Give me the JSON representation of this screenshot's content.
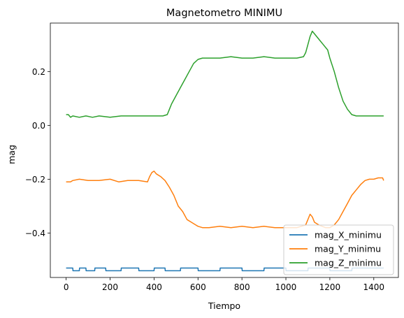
{
  "chart_data": {
    "type": "line",
    "title": "Magnetometro MINIMU",
    "xlabel": "Tiempo",
    "ylabel": "mag",
    "xlim": [
      -72,
      1512
    ],
    "ylim": [
      -0.565,
      0.38
    ],
    "xticks": [
      0,
      200,
      400,
      600,
      800,
      1000,
      1200,
      1400
    ],
    "xtick_labels": [
      "0",
      "200",
      "400",
      "600",
      "800",
      "1000",
      "1200",
      "1400"
    ],
    "yticks": [
      -0.4,
      -0.2,
      0.0,
      0.2
    ],
    "ytick_labels": [
      "−0.4",
      "−0.2",
      "0.0",
      "0.2"
    ],
    "grid": false,
    "legend_position": "lower-right",
    "series": [
      {
        "name": "mag_X_minimu",
        "color": "#1f77b4",
        "x": [
          0,
          30,
          31,
          60,
          61,
          90,
          91,
          130,
          131,
          180,
          181,
          250,
          251,
          330,
          331,
          400,
          401,
          450,
          451,
          520,
          521,
          600,
          601,
          700,
          701,
          800,
          801,
          900,
          901,
          1000,
          1001,
          1100,
          1101,
          1200,
          1201,
          1300,
          1301,
          1445
        ],
        "y": [
          -0.53,
          -0.53,
          -0.54,
          -0.54,
          -0.53,
          -0.53,
          -0.54,
          -0.54,
          -0.53,
          -0.53,
          -0.54,
          -0.54,
          -0.53,
          -0.53,
          -0.54,
          -0.54,
          -0.53,
          -0.53,
          -0.54,
          -0.54,
          -0.53,
          -0.53,
          -0.54,
          -0.54,
          -0.53,
          -0.53,
          -0.54,
          -0.54,
          -0.53,
          -0.53,
          -0.54,
          -0.54,
          -0.53,
          -0.53,
          -0.54,
          -0.54,
          -0.53,
          -0.53
        ]
      },
      {
        "name": "mag_Y_minimu",
        "color": "#ff7f0e",
        "x": [
          0,
          20,
          30,
          60,
          100,
          150,
          200,
          240,
          280,
          330,
          370,
          380,
          390,
          400,
          410,
          430,
          450,
          470,
          490,
          510,
          530,
          550,
          570,
          590,
          600,
          620,
          650,
          700,
          750,
          800,
          850,
          900,
          950,
          1000,
          1050,
          1090,
          1100,
          1110,
          1120,
          1130,
          1150,
          1180,
          1200,
          1220,
          1240,
          1260,
          1280,
          1300,
          1320,
          1340,
          1360,
          1380,
          1400,
          1420,
          1440,
          1445
        ],
        "y": [
          -0.21,
          -0.21,
          -0.205,
          -0.2,
          -0.205,
          -0.205,
          -0.2,
          -0.21,
          -0.205,
          -0.205,
          -0.21,
          -0.19,
          -0.175,
          -0.17,
          -0.18,
          -0.19,
          -0.205,
          -0.23,
          -0.26,
          -0.3,
          -0.32,
          -0.35,
          -0.36,
          -0.37,
          -0.375,
          -0.38,
          -0.38,
          -0.375,
          -0.38,
          -0.375,
          -0.38,
          -0.375,
          -0.38,
          -0.38,
          -0.38,
          -0.37,
          -0.35,
          -0.33,
          -0.34,
          -0.36,
          -0.37,
          -0.38,
          -0.38,
          -0.37,
          -0.35,
          -0.32,
          -0.29,
          -0.26,
          -0.24,
          -0.22,
          -0.205,
          -0.2,
          -0.2,
          -0.195,
          -0.195,
          -0.205
        ]
      },
      {
        "name": "mag_Z_minimu",
        "color": "#2ca02c",
        "x": [
          0,
          10,
          20,
          30,
          60,
          90,
          120,
          150,
          200,
          250,
          300,
          350,
          400,
          440,
          460,
          470,
          480,
          500,
          520,
          540,
          560,
          580,
          600,
          620,
          650,
          700,
          750,
          800,
          850,
          900,
          950,
          1000,
          1050,
          1080,
          1090,
          1100,
          1110,
          1120,
          1130,
          1150,
          1170,
          1190,
          1200,
          1220,
          1240,
          1260,
          1280,
          1300,
          1320,
          1340,
          1360,
          1380,
          1400,
          1420,
          1440,
          1445
        ],
        "y": [
          0.04,
          0.04,
          0.03,
          0.035,
          0.03,
          0.035,
          0.03,
          0.035,
          0.03,
          0.035,
          0.035,
          0.035,
          0.035,
          0.035,
          0.04,
          0.06,
          0.08,
          0.11,
          0.14,
          0.17,
          0.2,
          0.23,
          0.245,
          0.25,
          0.25,
          0.25,
          0.255,
          0.25,
          0.25,
          0.255,
          0.25,
          0.25,
          0.25,
          0.255,
          0.27,
          0.3,
          0.33,
          0.35,
          0.34,
          0.32,
          0.3,
          0.28,
          0.25,
          0.2,
          0.14,
          0.09,
          0.06,
          0.04,
          0.035,
          0.035,
          0.035,
          0.035,
          0.035,
          0.035,
          0.035,
          0.035
        ]
      }
    ]
  }
}
